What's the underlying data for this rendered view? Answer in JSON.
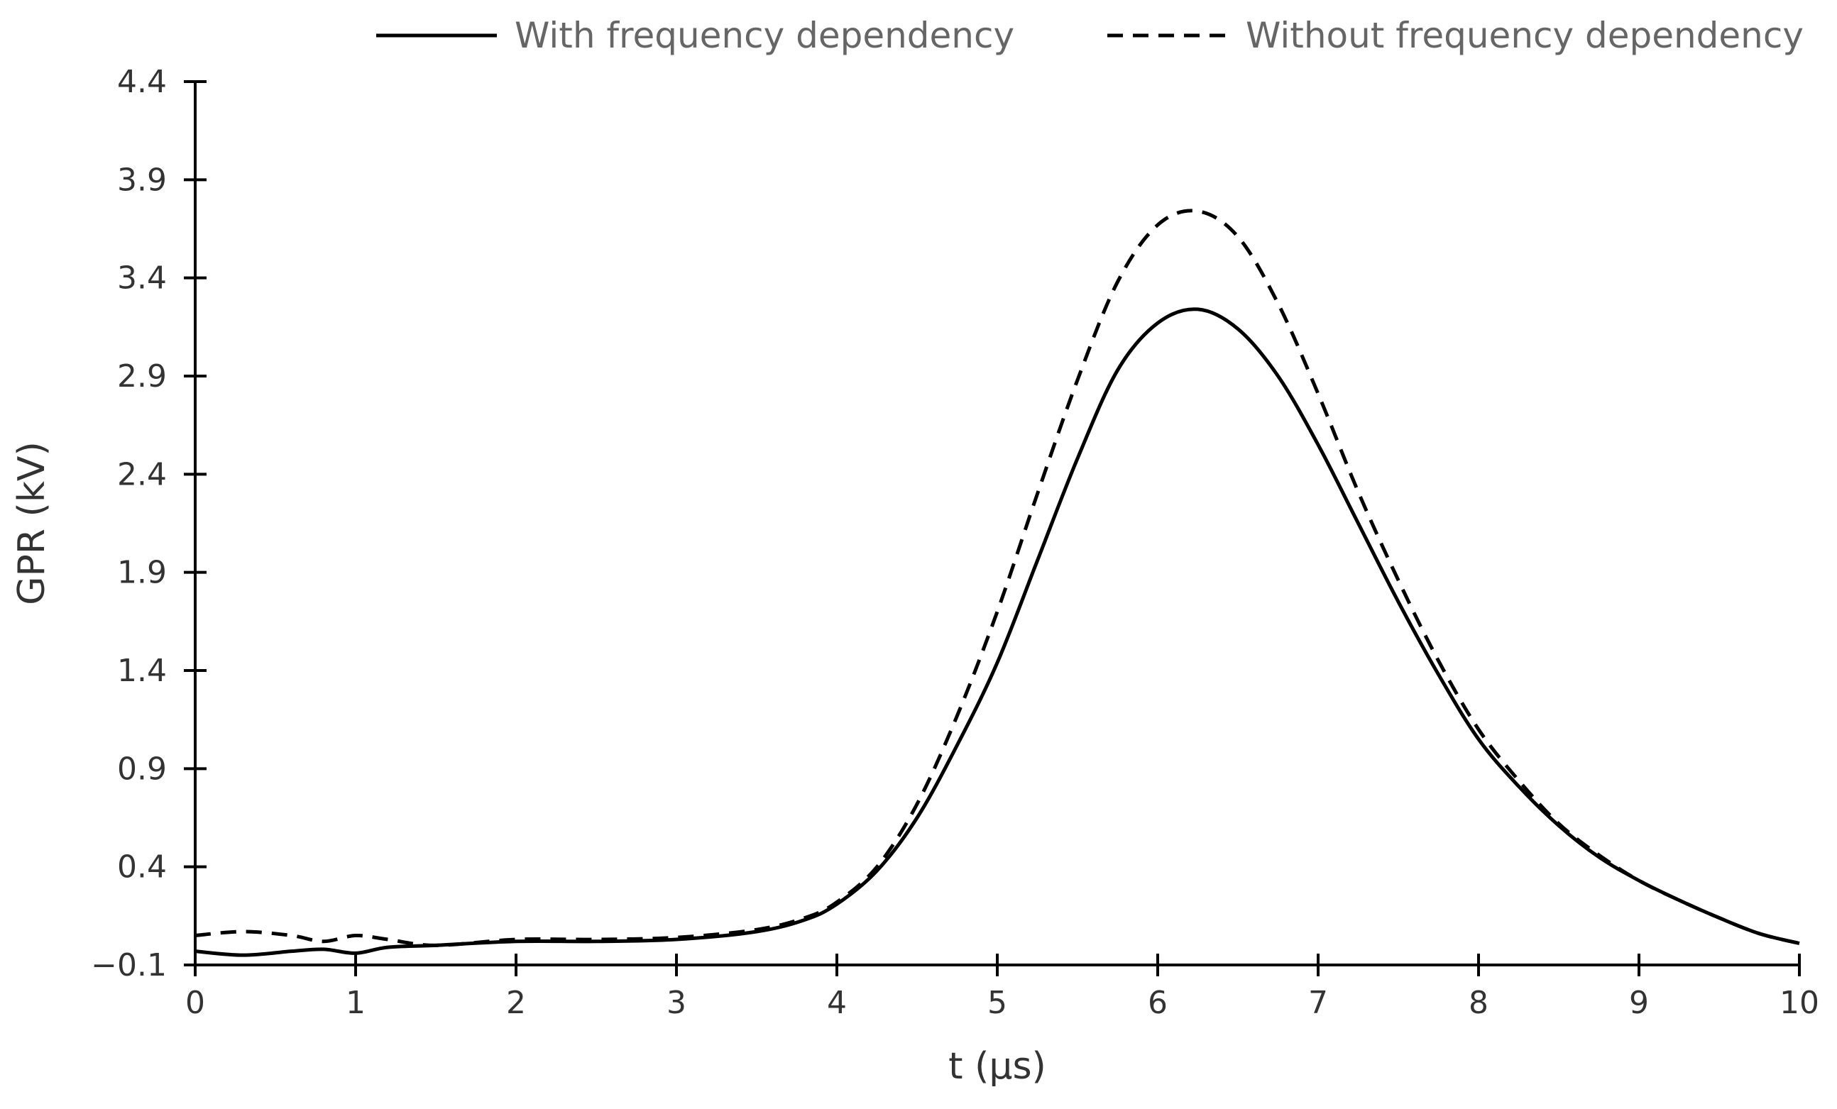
{
  "chart_data": {
    "type": "line",
    "title": "",
    "xlabel": "t (µs)",
    "ylabel": "GPR (kV)",
    "xlim": [
      0,
      10
    ],
    "ylim": [
      -0.1,
      4.4
    ],
    "x_ticks": [
      0,
      1,
      2,
      3,
      4,
      5,
      6,
      7,
      8,
      9,
      10
    ],
    "y_ticks": [
      -0.1,
      0.4,
      0.9,
      1.4,
      1.9,
      2.4,
      2.9,
      3.4,
      3.9,
      4.4
    ],
    "x_tick_labels": [
      "0",
      "1",
      "2",
      "3",
      "4",
      "5",
      "6",
      "7",
      "8",
      "9",
      "10"
    ],
    "y_tick_labels": [
      "−0.1",
      "0.4",
      "0.9",
      "1.4",
      "1.9",
      "2.4",
      "2.9",
      "3.4",
      "3.9",
      "4.4"
    ],
    "grid": false,
    "legend_position": "top-right",
    "series": [
      {
        "name": "With frequency dependency",
        "style": "solid",
        "color": "#000000",
        "x": [
          0,
          0.3,
          0.6,
          0.8,
          1.0,
          1.2,
          1.5,
          2.0,
          2.5,
          3.0,
          3.5,
          3.8,
          4.0,
          4.25,
          4.5,
          4.75,
          5.0,
          5.25,
          5.5,
          5.75,
          6.0,
          6.25,
          6.5,
          6.75,
          7.0,
          7.25,
          7.5,
          7.75,
          8.0,
          8.25,
          8.5,
          8.75,
          9.0,
          9.25,
          9.5,
          9.75,
          10.0
        ],
        "y": [
          -0.03,
          -0.05,
          -0.03,
          -0.02,
          -0.04,
          -0.01,
          0.0,
          0.02,
          0.02,
          0.03,
          0.07,
          0.13,
          0.21,
          0.38,
          0.65,
          1.02,
          1.44,
          1.96,
          2.48,
          2.93,
          3.17,
          3.24,
          3.14,
          2.9,
          2.55,
          2.15,
          1.75,
          1.38,
          1.05,
          0.81,
          0.61,
          0.45,
          0.33,
          0.23,
          0.14,
          0.06,
          0.01
        ]
      },
      {
        "name": "Without frequency dependency",
        "style": "dashed",
        "color": "#000000",
        "x": [
          0,
          0.3,
          0.6,
          0.8,
          1.0,
          1.2,
          1.5,
          2.0,
          2.5,
          3.0,
          3.5,
          3.8,
          4.0,
          4.25,
          4.5,
          4.75,
          5.0,
          5.25,
          5.5,
          5.75,
          6.0,
          6.25,
          6.5,
          6.75,
          7.0,
          7.25,
          7.5,
          7.75,
          8.0,
          8.25,
          8.5,
          8.75,
          9.0,
          9.25,
          9.5,
          9.75,
          10.0
        ],
        "y": [
          0.05,
          0.07,
          0.05,
          0.02,
          0.05,
          0.03,
          0.0,
          0.03,
          0.03,
          0.04,
          0.08,
          0.14,
          0.22,
          0.4,
          0.72,
          1.17,
          1.7,
          2.3,
          2.88,
          3.38,
          3.67,
          3.74,
          3.61,
          3.27,
          2.81,
          2.31,
          1.86,
          1.45,
          1.1,
          0.84,
          0.62,
          0.46,
          0.33,
          0.23,
          0.14,
          0.06,
          0.01
        ]
      }
    ]
  }
}
